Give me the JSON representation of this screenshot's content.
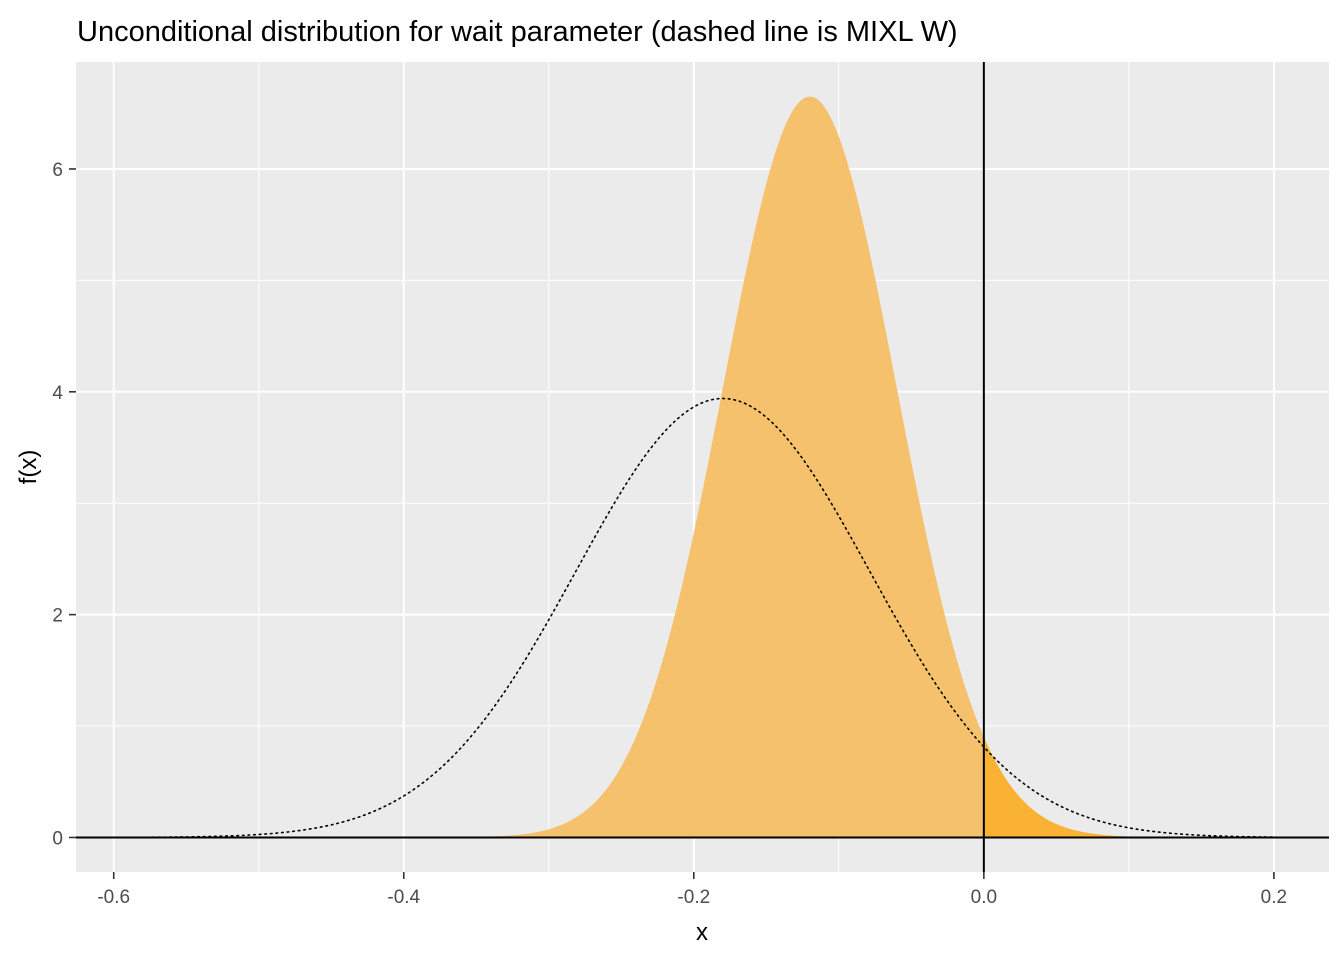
{
  "chart_data": {
    "type": "area",
    "title": "Unconditional distribution for wait parameter (dashed line is MIXL W)",
    "xlabel": "x",
    "ylabel": "f(x)",
    "xlim": [
      -0.626,
      0.238
    ],
    "ylim": [
      -0.31,
      6.96
    ],
    "x_ticks": [
      -0.6,
      -0.4,
      -0.2,
      0.0,
      0.2
    ],
    "x_tick_labels": [
      "-0.6",
      "-0.4",
      "-0.2",
      "0.0",
      "0.2"
    ],
    "y_ticks": [
      0,
      2,
      4,
      6
    ],
    "y_tick_labels": [
      "0",
      "2",
      "4",
      "6"
    ],
    "grid": true,
    "background": "#ebebeb",
    "series": [
      {
        "style": "filled-area",
        "color": "#f5c16c",
        "x_range": [
          -0.34,
          0.16
        ],
        "peak_x": -0.12,
        "peak_y": 6.65,
        "mean": -0.12,
        "sd": 0.06
      },
      {
        "style": "filled-area-positive-part",
        "color": "#f9b233",
        "x_range": [
          0.0,
          0.16
        ]
      },
      {
        "style": "dotted-line",
        "color": "#000000",
        "x_range": [
          -0.6,
          0.2
        ],
        "peak_x": -0.18,
        "peak_y": 3.94,
        "mean": -0.18,
        "sd": 0.1013
      }
    ],
    "reference_lines": [
      {
        "orientation": "vertical",
        "value": 0.0,
        "color": "#000000"
      },
      {
        "orientation": "horizontal",
        "value": 0.0,
        "color": "#000000"
      }
    ]
  }
}
